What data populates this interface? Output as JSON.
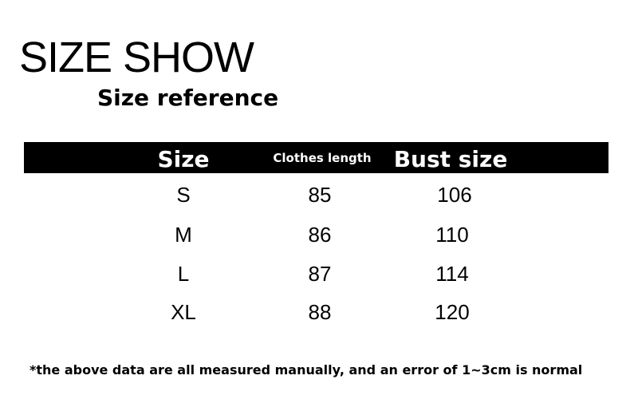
{
  "title": "SIZE SHOW",
  "subtitle": "Size reference",
  "table": {
    "headers": [
      "Size",
      "Clothes length",
      "Bust size"
    ],
    "rows": [
      [
        "S",
        "85",
        "106"
      ],
      [
        "M",
        "86",
        "110"
      ],
      [
        "L",
        "87",
        "114"
      ],
      [
        "XL",
        "88",
        "120"
      ]
    ]
  },
  "note": "*the above data are all measured manually, and an error of 1~3cm is normal",
  "colors": {
    "header_bg": "#000000",
    "header_text": "#ffffff",
    "text": "#000000"
  }
}
